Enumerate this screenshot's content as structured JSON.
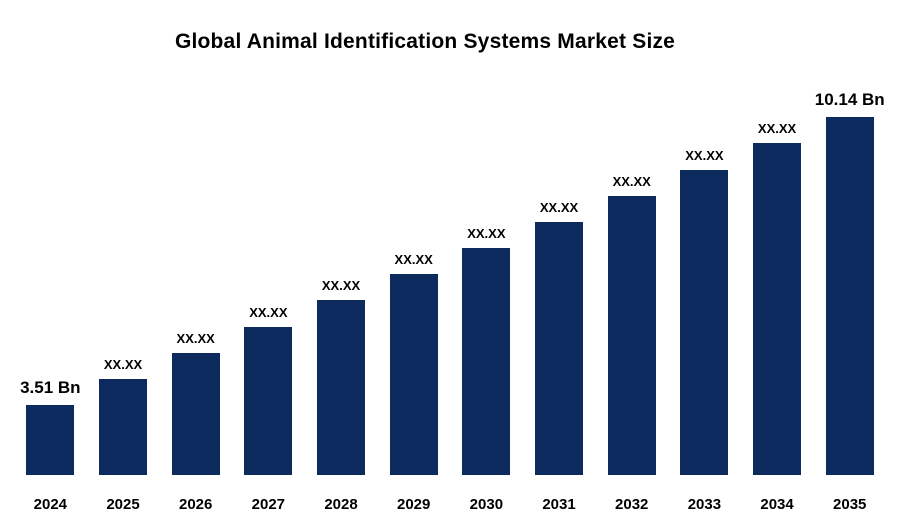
{
  "chart_data": {
    "type": "bar",
    "title": "Global Animal Identification Systems Market Size",
    "unit": "Bn",
    "categories": [
      "2024",
      "2025",
      "2026",
      "2027",
      "2028",
      "2029",
      "2030",
      "2031",
      "2032",
      "2033",
      "2034",
      "2035"
    ],
    "values": [
      3.51,
      4.11,
      4.71,
      5.31,
      5.92,
      6.52,
      7.12,
      7.73,
      8.33,
      8.93,
      9.54,
      10.14
    ],
    "bar_labels": [
      "3.51 Bn",
      "XX.XX",
      "XX.XX",
      "XX.XX",
      "XX.XX",
      "XX.XX",
      "XX.XX",
      "XX.XX",
      "XX.XX",
      "XX.XX",
      "XX.XX",
      "10.14 Bn"
    ],
    "known_values": {
      "2024": "3.51 Bn",
      "2035": "10.14 Bn"
    },
    "bar_color": "#0d2a5e",
    "label_color": "#000000",
    "xlabel": "",
    "ylabel": "",
    "axis": {
      "y_axis_visible": false,
      "x_axis_visible": false,
      "gridlines": false
    },
    "legend": "none"
  }
}
